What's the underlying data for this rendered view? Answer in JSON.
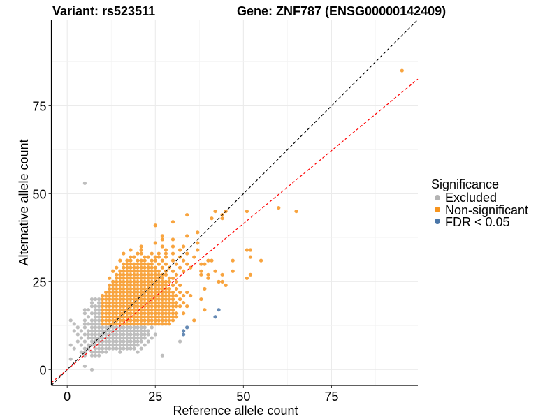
{
  "chart_data": {
    "type": "scatter",
    "title_left": "Variant: rs523511",
    "title_right": "Gene: ZNF787 (ENSG00000142409)",
    "xlabel": "Reference allele count",
    "ylabel": "Alternative allele count",
    "xlim": [
      -4.5,
      99.5
    ],
    "ylim": [
      -4.5,
      99.5
    ],
    "xticks": [
      0,
      25,
      50,
      75
    ],
    "yticks": [
      0,
      25,
      50,
      75
    ],
    "xtick_labels": [
      "0",
      "25",
      "50",
      "75"
    ],
    "ytick_labels": [
      "0",
      "25",
      "50",
      "75"
    ],
    "grid": true,
    "legend": {
      "title": "Significance",
      "position": "right",
      "entries": [
        {
          "label": "Excluded",
          "color": "#b3b3b3"
        },
        {
          "label": "Non-significant",
          "color": "#f7941d"
        },
        {
          "label": "FDR < 0.05",
          "color": "#4a76a8"
        }
      ]
    },
    "reference_lines": [
      {
        "name": "identity",
        "slope": 1.0,
        "intercept": 0,
        "color": "#000000",
        "style": "dashed"
      },
      {
        "name": "fit",
        "slope": 0.83,
        "intercept": 0,
        "color": "#ff0000",
        "style": "dashed"
      }
    ],
    "series": [
      {
        "name": "Excluded",
        "color": "#b3b3b3",
        "rows": [
          {
            "y": 0,
            "x": [
              7
            ]
          },
          {
            "y": 1,
            "x": [
              5
            ]
          },
          {
            "y": 3,
            "x": [
              1
            ]
          },
          {
            "y": 4,
            "x": [
              5,
              7,
              8,
              9,
              27
            ]
          },
          {
            "y": 5,
            "x": [
              4,
              5,
              7,
              8,
              9,
              10,
              11,
              15,
              20
            ]
          },
          {
            "y": 6,
            "x": [
              2,
              5,
              6,
              8,
              9,
              10,
              11,
              12,
              13,
              14,
              15,
              16,
              17,
              18,
              19,
              21
            ]
          },
          {
            "y": 7,
            "x": [
              1,
              4,
              6,
              7,
              8,
              9,
              10,
              11,
              12,
              13,
              14,
              15,
              16,
              17,
              18,
              19,
              20,
              22
            ]
          },
          {
            "y": 8,
            "x": [
              3,
              5,
              7,
              8,
              9,
              10,
              11,
              12,
              13,
              14,
              15,
              16,
              17,
              18,
              19,
              20,
              21,
              23,
              32
            ]
          },
          {
            "y": 9,
            "x": [
              4,
              6,
              7,
              8,
              9,
              10,
              11,
              12,
              13,
              14,
              15,
              16,
              17,
              18,
              19,
              20,
              21,
              22,
              24
            ]
          },
          {
            "y": 10,
            "x": [
              3,
              5,
              6,
              7,
              8,
              9,
              10,
              11,
              12,
              13,
              14,
              15,
              16,
              17,
              18,
              19,
              20,
              21,
              22,
              23,
              25
            ]
          },
          {
            "y": 11,
            "x": [
              2,
              4,
              6,
              7,
              8,
              9,
              10,
              11,
              12,
              13,
              14,
              15,
              16,
              17,
              18,
              19,
              20,
              21,
              22,
              23
            ]
          },
          {
            "y": 12,
            "x": [
              3,
              5,
              7,
              8,
              9,
              10,
              11,
              12,
              13,
              14,
              15,
              16,
              17,
              18,
              19,
              20,
              21,
              22,
              24
            ]
          },
          {
            "y": 13,
            "x": [
              2,
              5,
              6,
              7,
              8,
              9
            ]
          },
          {
            "y": 14,
            "x": [
              1,
              5,
              7,
              8,
              9
            ]
          },
          {
            "y": 15,
            "x": [
              6,
              8,
              9
            ]
          },
          {
            "y": 16,
            "x": [
              5,
              7,
              8,
              9
            ]
          },
          {
            "y": 17,
            "x": [
              5,
              6,
              8,
              9
            ]
          },
          {
            "y": 18,
            "x": [
              7,
              8,
              9
            ]
          },
          {
            "y": 19,
            "x": [
              7,
              9
            ]
          },
          {
            "y": 20,
            "x": [
              7,
              8,
              9
            ]
          },
          {
            "y": 53,
            "x": [
              5
            ]
          }
        ]
      },
      {
        "name": "Non-significant",
        "color": "#f7941d",
        "rows": [
          {
            "y": 13,
            "x": [
              10,
              11,
              12,
              13,
              14,
              15,
              16,
              17,
              18,
              19,
              20,
              21,
              22,
              23,
              24,
              25,
              26,
              27,
              28,
              29
            ]
          },
          {
            "y": 14,
            "x": [
              10,
              11,
              12,
              13,
              14,
              15,
              16,
              17,
              18,
              19,
              20,
              21,
              22,
              23,
              24,
              25,
              26,
              27,
              28,
              29,
              30,
              36
            ]
          },
          {
            "y": 15,
            "x": [
              10,
              11,
              12,
              13,
              14,
              15,
              16,
              17,
              18,
              19,
              20,
              21,
              22,
              23,
              24,
              25,
              26,
              27,
              28,
              29,
              30,
              31
            ]
          },
          {
            "y": 16,
            "x": [
              10,
              11,
              12,
              13,
              14,
              15,
              16,
              17,
              18,
              19,
              20,
              21,
              22,
              23,
              24,
              25,
              26,
              27,
              28,
              29,
              30,
              31,
              33
            ]
          },
          {
            "y": 17,
            "x": [
              10,
              11,
              12,
              13,
              14,
              15,
              16,
              17,
              18,
              19,
              20,
              21,
              22,
              23,
              24,
              25,
              26,
              27,
              28,
              29,
              30,
              39
            ]
          },
          {
            "y": 18,
            "x": [
              10,
              11,
              12,
              13,
              14,
              15,
              16,
              17,
              18,
              19,
              20,
              21,
              22,
              23,
              24,
              25,
              26,
              27,
              28,
              29,
              30,
              31,
              32,
              34
            ]
          },
          {
            "y": 19,
            "x": [
              10,
              11,
              12,
              13,
              14,
              15,
              16,
              17,
              18,
              19,
              20,
              21,
              22,
              23,
              24,
              25,
              26,
              27,
              28,
              29,
              30,
              31,
              33
            ]
          },
          {
            "y": 20,
            "x": [
              10,
              11,
              12,
              13,
              14,
              15,
              16,
              17,
              18,
              19,
              20,
              21,
              22,
              23,
              24,
              25,
              26,
              27,
              28,
              29,
              30,
              32,
              38
            ]
          },
          {
            "y": 21,
            "x": [
              10,
              11,
              12,
              13,
              14,
              15,
              16,
              17,
              18,
              19,
              20,
              21,
              22,
              23,
              24,
              25,
              26,
              27,
              28,
              29,
              30,
              31,
              33,
              35
            ]
          },
          {
            "y": 22,
            "x": [
              11,
              12,
              13,
              14,
              15,
              16,
              17,
              18,
              19,
              20,
              21,
              22,
              23,
              24,
              25,
              26,
              27,
              28,
              29,
              30,
              32,
              34
            ]
          },
          {
            "y": 23,
            "x": [
              12,
              13,
              14,
              15,
              16,
              17,
              18,
              19,
              20,
              21,
              22,
              23,
              24,
              25,
              26,
              27,
              28,
              29,
              31,
              39
            ]
          },
          {
            "y": 24,
            "x": [
              12,
              13,
              14,
              15,
              16,
              17,
              18,
              19,
              20,
              21,
              22,
              23,
              24,
              25,
              26,
              27,
              28,
              30,
              32,
              45
            ]
          },
          {
            "y": 25,
            "x": [
              13,
              14,
              15,
              16,
              17,
              18,
              19,
              20,
              21,
              22,
              23,
              24,
              25,
              26,
              27,
              28,
              29,
              31,
              43,
              44
            ]
          },
          {
            "y": 26,
            "x": [
              12,
              14,
              15,
              16,
              17,
              18,
              19,
              20,
              21,
              22,
              23,
              24,
              25,
              26,
              27,
              29,
              30,
              40,
              51
            ]
          },
          {
            "y": 27,
            "x": [
              14,
              15,
              16,
              17,
              18,
              19,
              20,
              21,
              22,
              23,
              24,
              25,
              26,
              27,
              28,
              31,
              38,
              40,
              44,
              52
            ]
          },
          {
            "y": 28,
            "x": [
              13,
              15,
              16,
              17,
              18,
              19,
              20,
              21,
              22,
              23,
              24,
              25,
              26,
              28,
              30,
              33,
              38,
              42,
              47
            ]
          },
          {
            "y": 29,
            "x": [
              14,
              16,
              17,
              18,
              19,
              20,
              21,
              22,
              23,
              24,
              25,
              27,
              29,
              32,
              35
            ]
          },
          {
            "y": 30,
            "x": [
              16,
              17,
              18,
              19,
              20,
              21,
              22,
              23,
              24,
              26,
              28,
              31,
              34,
              38,
              39
            ]
          },
          {
            "y": 31,
            "x": [
              15,
              17,
              18,
              20,
              21,
              22,
              24,
              25,
              27,
              30,
              33,
              40,
              41,
              47,
              55
            ]
          },
          {
            "y": 32,
            "x": [
              18,
              19,
              22,
              23,
              25,
              26,
              28,
              32,
              36,
              52
            ]
          },
          {
            "y": 33,
            "x": [
              16,
              20,
              21,
              24,
              26,
              28,
              30,
              34
            ]
          },
          {
            "y": 34,
            "x": [
              18,
              21,
              28,
              32,
              37,
              51,
              52
            ]
          },
          {
            "y": 35,
            "x": [
              21,
              27,
              30,
              33
            ]
          },
          {
            "y": 36,
            "x": [
              25,
              37
            ]
          },
          {
            "y": 37,
            "x": [
              27,
              30
            ]
          },
          {
            "y": 38,
            "x": [
              27,
              34
            ]
          },
          {
            "y": 39,
            "x": [
              37
            ]
          },
          {
            "y": 41,
            "x": [
              25
            ]
          },
          {
            "y": 42,
            "x": [
              30
            ]
          },
          {
            "y": 43,
            "x": [
              41,
              44
            ]
          },
          {
            "y": 44,
            "x": [
              34,
              44
            ]
          },
          {
            "y": 45,
            "x": [
              42,
              45,
              51,
              65
            ]
          },
          {
            "y": 46,
            "x": [
              60
            ]
          },
          {
            "y": 85,
            "x": [
              95
            ]
          }
        ]
      },
      {
        "name": "FDR < 0.05",
        "color": "#4a76a8",
        "rows": [
          {
            "y": 10,
            "x": [
              33
            ]
          },
          {
            "y": 11,
            "x": [
              33
            ]
          },
          {
            "y": 12,
            "x": [
              34
            ]
          },
          {
            "y": 15,
            "x": [
              42
            ]
          },
          {
            "y": 17,
            "x": [
              43
            ]
          }
        ]
      }
    ]
  }
}
